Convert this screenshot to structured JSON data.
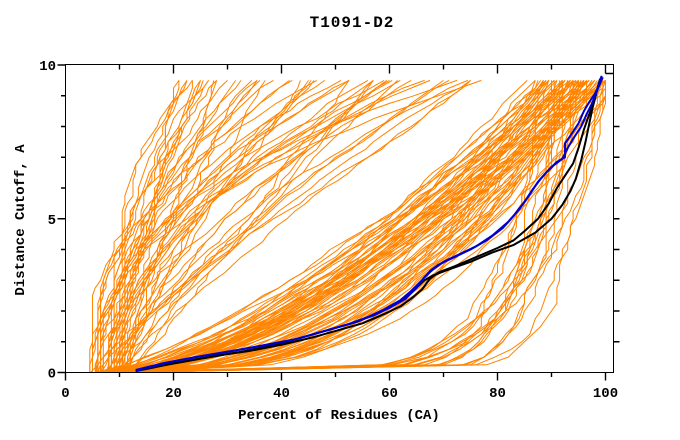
{
  "chart_data": {
    "type": "line",
    "title": "T1091-D2",
    "xlabel": "Percent of Residues (CA)",
    "ylabel": "Distance Cutoff, A",
    "xlim": [
      0,
      100
    ],
    "ylim": [
      0,
      10
    ],
    "grid": false,
    "legend": "none",
    "x_ticks": {
      "minor_every": 10,
      "labeled": [
        0,
        20,
        40,
        60,
        80,
        100
      ],
      "labels": [
        "0",
        "20",
        "40",
        "60",
        "80",
        "100"
      ]
    },
    "y_ticks": {
      "minor_every": 1,
      "labeled": [
        0,
        5,
        10
      ],
      "labels": [
        "0",
        "5",
        "10"
      ]
    },
    "colors": {
      "ensemble": "#ff8400",
      "highlight_primary": "#0000cd",
      "highlight_secondary": "#000000",
      "frame": "#000000",
      "background": "#ffffff"
    },
    "series": [
      {
        "name": "highlight-black-1",
        "color_key": "highlight_secondary",
        "width": 2,
        "points": [
          [
            13,
            0.05
          ],
          [
            16,
            0.15
          ],
          [
            20,
            0.3
          ],
          [
            25,
            0.45
          ],
          [
            30,
            0.6
          ],
          [
            35,
            0.75
          ],
          [
            40,
            0.95
          ],
          [
            45,
            1.2
          ],
          [
            50,
            1.45
          ],
          [
            54,
            1.65
          ],
          [
            58,
            1.95
          ],
          [
            61,
            2.2
          ],
          [
            63,
            2.45
          ],
          [
            65,
            2.75
          ],
          [
            66.5,
            3.0
          ],
          [
            68,
            3.15
          ],
          [
            71,
            3.35
          ],
          [
            75,
            3.6
          ],
          [
            79,
            3.9
          ],
          [
            83,
            4.15
          ],
          [
            87,
            4.55
          ],
          [
            90,
            5.0
          ],
          [
            92,
            5.45
          ],
          [
            93.5,
            5.9
          ],
          [
            94.5,
            6.3
          ],
          [
            95.5,
            6.9
          ],
          [
            96.3,
            7.5
          ],
          [
            97,
            8.1
          ],
          [
            97.6,
            8.6
          ],
          [
            98.2,
            9.0
          ],
          [
            98.6,
            9.3
          ],
          [
            99,
            9.55
          ]
        ]
      },
      {
        "name": "highlight-black-2",
        "color_key": "highlight_secondary",
        "width": 2,
        "points": [
          [
            13,
            0.05
          ],
          [
            17,
            0.2
          ],
          [
            22,
            0.35
          ],
          [
            28,
            0.55
          ],
          [
            34,
            0.7
          ],
          [
            40,
            0.9
          ],
          [
            46,
            1.15
          ],
          [
            51,
            1.4
          ],
          [
            55,
            1.6
          ],
          [
            59,
            1.9
          ],
          [
            62,
            2.15
          ],
          [
            64,
            2.4
          ],
          [
            66,
            2.7
          ],
          [
            67.5,
            3.05
          ],
          [
            69,
            3.25
          ],
          [
            72,
            3.45
          ],
          [
            76,
            3.75
          ],
          [
            80,
            4.05
          ],
          [
            83,
            4.3
          ],
          [
            85,
            4.6
          ],
          [
            87.5,
            5.0
          ],
          [
            89.5,
            5.5
          ],
          [
            91,
            6.0
          ],
          [
            92.5,
            6.4
          ],
          [
            94,
            6.8
          ],
          [
            95,
            7.3
          ],
          [
            96,
            7.9
          ],
          [
            97,
            8.4
          ],
          [
            97.8,
            8.8
          ],
          [
            98.4,
            9.15
          ],
          [
            99,
            9.45
          ],
          [
            99.2,
            9.6
          ]
        ]
      },
      {
        "name": "highlight-blue-1",
        "color_key": "highlight_primary",
        "width": 2,
        "points": [
          [
            13,
            0.08
          ],
          [
            18,
            0.3
          ],
          [
            24,
            0.5
          ],
          [
            30,
            0.68
          ],
          [
            36,
            0.85
          ],
          [
            42,
            1.05
          ],
          [
            47,
            1.3
          ],
          [
            52,
            1.55
          ],
          [
            56,
            1.8
          ],
          [
            59,
            2.05
          ],
          [
            62,
            2.35
          ],
          [
            64,
            2.65
          ],
          [
            66,
            3.0
          ],
          [
            67.5,
            3.3
          ],
          [
            69,
            3.5
          ],
          [
            72,
            3.75
          ],
          [
            75,
            4.0
          ],
          [
            78,
            4.3
          ],
          [
            81,
            4.7
          ],
          [
            83,
            5.1
          ],
          [
            85,
            5.55
          ],
          [
            86.5,
            5.95
          ],
          [
            88,
            6.3
          ],
          [
            89.5,
            6.6
          ],
          [
            91,
            6.85
          ],
          [
            92.5,
            7.0
          ],
          [
            92.5,
            7.45
          ],
          [
            93.5,
            7.7
          ],
          [
            95,
            8.1
          ],
          [
            96,
            8.5
          ],
          [
            97,
            8.8
          ],
          [
            98,
            9.05
          ],
          [
            98.7,
            9.3
          ],
          [
            99,
            9.5
          ],
          [
            99.3,
            9.65
          ]
        ]
      },
      {
        "name": "highlight-blue-2",
        "color_key": "highlight_primary",
        "width": 2,
        "points": [
          [
            13,
            0.05
          ],
          [
            19,
            0.33
          ],
          [
            25,
            0.52
          ],
          [
            31,
            0.7
          ],
          [
            37,
            0.9
          ],
          [
            43,
            1.1
          ],
          [
            48,
            1.35
          ],
          [
            53,
            1.6
          ],
          [
            57,
            1.85
          ],
          [
            60,
            2.1
          ],
          [
            63,
            2.4
          ],
          [
            65,
            2.75
          ],
          [
            66.5,
            3.1
          ],
          [
            68,
            3.35
          ],
          [
            70,
            3.6
          ],
          [
            73,
            3.85
          ],
          [
            76,
            4.1
          ],
          [
            79,
            4.45
          ],
          [
            82,
            4.9
          ],
          [
            84,
            5.3
          ],
          [
            86,
            5.8
          ],
          [
            87.5,
            6.2
          ],
          [
            89,
            6.5
          ],
          [
            90.5,
            6.75
          ],
          [
            92,
            6.95
          ],
          [
            93,
            7.3
          ],
          [
            94,
            7.6
          ],
          [
            95.5,
            8.0
          ],
          [
            96.5,
            8.4
          ],
          [
            97.5,
            8.75
          ],
          [
            98.3,
            9.1
          ],
          [
            99,
            9.4
          ],
          [
            99.5,
            9.6
          ]
        ]
      }
    ],
    "ensemble": {
      "name": "all-server-models",
      "color_key": "ensemble",
      "count": 150,
      "seed": 1091,
      "width": 1,
      "y_step": 0.25,
      "y_max": 9.5,
      "jitter": 1.2,
      "x_quantum": 0.5,
      "groups": [
        {
          "kind": "good",
          "frac": 0.5,
          "x0": [
            5,
            15
          ],
          "exp": [
            0.3,
            0.8
          ],
          "xend": [
            86,
            100.5
          ]
        },
        {
          "kind": "bad",
          "frac": 0.37,
          "x0": [
            4,
            12
          ],
          "exp": [
            0.95,
            2.6
          ],
          "xend": [
            18,
            78
          ]
        },
        {
          "kind": "floor",
          "frac": 0.13,
          "x0": [
            5,
            13
          ],
          "exp": [
            0.06,
            0.18
          ],
          "xend": [
            88,
            101
          ]
        }
      ]
    }
  }
}
